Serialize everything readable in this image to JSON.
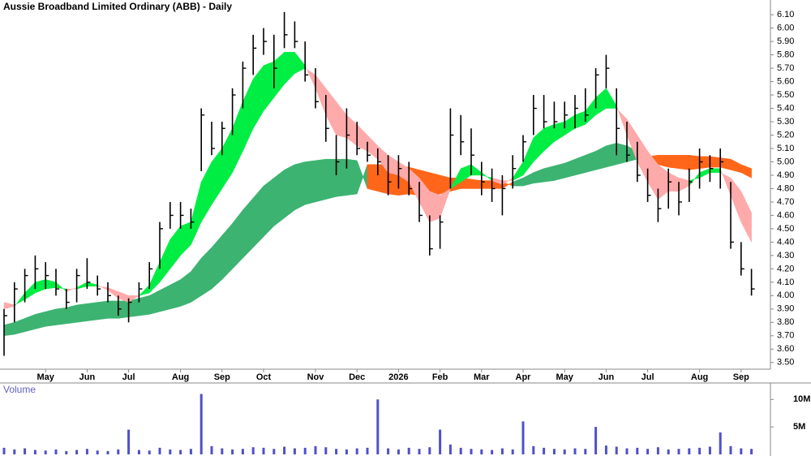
{
  "chart_data": [
    {
      "type": "ohlc",
      "title": "Aussie Broadband Limited Ordinary (ABB) - Daily",
      "categories": [
        null,
        null,
        null,
        null,
        "May",
        null,
        null,
        null,
        "Jun",
        null,
        null,
        null,
        "Jul",
        null,
        null,
        null,
        null,
        "Aug",
        null,
        null,
        null,
        "Sep",
        null,
        null,
        null,
        "Oct",
        null,
        null,
        null,
        null,
        "Nov",
        null,
        null,
        null,
        "Dec",
        null,
        null,
        null,
        "2026",
        null,
        null,
        null,
        "Feb",
        null,
        null,
        null,
        "Mar",
        null,
        null,
        null,
        "Apr",
        null,
        null,
        null,
        "May",
        null,
        null,
        null,
        "Jun",
        null,
        null,
        null,
        "Jul",
        null,
        null,
        null,
        null,
        "Aug",
        null,
        null,
        null,
        "Sep",
        null
      ],
      "high": [
        3.9,
        4.1,
        4.2,
        4.3,
        4.25,
        4.2,
        4.05,
        4.2,
        4.28,
        4.15,
        4.1,
        4.0,
        3.98,
        4.1,
        4.25,
        4.55,
        4.7,
        4.7,
        4.65,
        5.4,
        5.3,
        5.3,
        5.55,
        5.75,
        5.95,
        6.0,
        5.95,
        6.12,
        6.05,
        5.9,
        5.7,
        5.5,
        5.2,
        5.4,
        5.3,
        5.15,
        5.1,
        5.05,
        5.05,
        5.0,
        4.85,
        4.6,
        4.6,
        5.4,
        5.35,
        5.25,
        5.0,
        4.95,
        4.9,
        5.05,
        5.2,
        5.5,
        5.5,
        5.45,
        5.45,
        5.5,
        5.55,
        5.7,
        5.8,
        5.55,
        5.3,
        5.15,
        4.95,
        4.8,
        4.95,
        4.85,
        4.95,
        5.1,
        5.05,
        5.1,
        4.85,
        4.4,
        4.2
      ],
      "low": [
        3.55,
        3.8,
        3.95,
        4.05,
        4.05,
        4.0,
        3.9,
        3.95,
        4.05,
        4.0,
        3.95,
        3.85,
        3.8,
        3.95,
        4.05,
        4.2,
        4.5,
        4.5,
        4.5,
        4.93,
        5.05,
        5.05,
        5.2,
        5.4,
        5.65,
        5.8,
        5.55,
        5.85,
        5.85,
        5.6,
        5.4,
        5.15,
        4.9,
        4.95,
        5.05,
        5.0,
        4.9,
        4.75,
        4.8,
        4.75,
        4.55,
        4.3,
        4.35,
        4.8,
        5.05,
        4.9,
        4.75,
        4.7,
        4.6,
        4.8,
        5.0,
        5.2,
        5.25,
        5.25,
        5.25,
        5.25,
        5.3,
        5.4,
        5.55,
        5.05,
        5.0,
        4.85,
        4.7,
        4.55,
        4.65,
        4.6,
        4.7,
        4.8,
        4.85,
        4.8,
        4.35,
        4.15,
        4.0
      ],
      "close": [
        3.85,
        4.05,
        4.15,
        4.2,
        4.15,
        4.05,
        3.95,
        4.15,
        4.1,
        4.05,
        4.0,
        3.9,
        3.95,
        4.05,
        4.2,
        4.5,
        4.6,
        4.6,
        4.55,
        5.35,
        5.1,
        5.25,
        5.5,
        5.7,
        5.85,
        5.9,
        5.7,
        5.95,
        5.9,
        5.65,
        5.45,
        5.25,
        5.0,
        5.2,
        5.1,
        5.05,
        5.0,
        4.85,
        4.95,
        4.8,
        4.6,
        4.35,
        4.55,
        5.2,
        5.15,
        5.05,
        4.85,
        4.8,
        4.8,
        4.95,
        5.15,
        5.4,
        5.3,
        5.3,
        5.35,
        5.4,
        5.35,
        5.65,
        5.7,
        5.25,
        5.05,
        4.9,
        4.75,
        4.65,
        4.85,
        4.7,
        4.85,
        5.0,
        4.95,
        5.0,
        4.4,
        4.2,
        4.05
      ],
      "color": "#000000",
      "bands": [
        {
          "fast": [
            3.78,
            3.8,
            3.83,
            3.86,
            3.88,
            3.9,
            3.91,
            3.93,
            3.94,
            3.95,
            3.96,
            3.96,
            3.96,
            3.98,
            4.0,
            4.04,
            4.08,
            4.12,
            4.18,
            4.28,
            4.36,
            4.45,
            4.54,
            4.64,
            4.73,
            4.82,
            4.88,
            4.94,
            4.98,
            5.0,
            5.01,
            5.02,
            5.02,
            5.02,
            5.01,
            4.8,
            4.78,
            4.76,
            4.75,
            4.76,
            4.75,
            4.74,
            4.76,
            4.78,
            4.8,
            4.8,
            4.8,
            4.8,
            4.8,
            4.85,
            4.88,
            4.92,
            4.95,
            4.97,
            4.99,
            5.02,
            5.05,
            5.08,
            5.12,
            5.14,
            5.12,
            5.08,
            5.04,
            4.98,
            4.96,
            4.95,
            4.94,
            4.95,
            4.96,
            4.96,
            4.94,
            4.92,
            4.88
          ],
          "slow": [
            3.7,
            3.71,
            3.73,
            3.75,
            3.77,
            3.78,
            3.79,
            3.8,
            3.81,
            3.82,
            3.83,
            3.83,
            3.84,
            3.85,
            3.86,
            3.88,
            3.9,
            3.92,
            3.95,
            4.0,
            4.05,
            4.12,
            4.2,
            4.28,
            4.36,
            4.44,
            4.52,
            4.58,
            4.64,
            4.68,
            4.7,
            4.72,
            4.74,
            4.75,
            4.76,
            4.98,
            4.98,
            4.98,
            4.97,
            4.96,
            4.94,
            4.92,
            4.9,
            4.88,
            4.88,
            4.87,
            4.86,
            4.86,
            4.85,
            4.82,
            4.82,
            4.84,
            4.85,
            4.86,
            4.88,
            4.9,
            4.92,
            4.94,
            4.96,
            4.98,
            5.0,
            5.02,
            5.04,
            5.05,
            5.05,
            5.05,
            5.05,
            5.04,
            5.04,
            5.03,
            5.02,
            4.98,
            4.95
          ],
          "up_color": "#3cb371",
          "down_color": "#ff6619"
        },
        {
          "fast": [
            3.9,
            3.92,
            4.02,
            4.1,
            4.12,
            4.1,
            4.03,
            4.06,
            4.1,
            4.08,
            4.04,
            3.98,
            3.95,
            4.0,
            4.08,
            4.25,
            4.42,
            4.52,
            4.55,
            4.85,
            5.0,
            5.1,
            5.25,
            5.45,
            5.62,
            5.72,
            5.75,
            5.82,
            5.82,
            5.72,
            5.55,
            5.35,
            5.2,
            5.18,
            5.12,
            5.08,
            5.02,
            4.92,
            4.9,
            4.85,
            4.7,
            4.55,
            4.58,
            4.8,
            4.95,
            4.98,
            4.92,
            4.86,
            4.83,
            4.88,
            5.0,
            5.18,
            5.25,
            5.28,
            5.3,
            5.35,
            5.38,
            5.48,
            5.55,
            5.42,
            5.2,
            5.0,
            4.85,
            4.72,
            4.78,
            4.78,
            4.82,
            4.92,
            4.95,
            4.95,
            4.75,
            4.55,
            4.4
          ],
          "slow": [
            3.95,
            3.93,
            3.97,
            4.02,
            4.05,
            4.06,
            4.05,
            4.05,
            4.07,
            4.07,
            4.06,
            4.03,
            4.0,
            4.0,
            4.02,
            4.1,
            4.2,
            4.3,
            4.38,
            4.55,
            4.68,
            4.8,
            4.92,
            5.08,
            5.25,
            5.38,
            5.48,
            5.58,
            5.66,
            5.7,
            5.65,
            5.55,
            5.45,
            5.35,
            5.28,
            5.2,
            5.12,
            5.05,
            5.0,
            4.95,
            4.88,
            4.78,
            4.75,
            4.8,
            4.85,
            4.9,
            4.9,
            4.88,
            4.86,
            4.86,
            4.9,
            5.0,
            5.08,
            5.15,
            5.2,
            5.25,
            5.28,
            5.35,
            5.4,
            5.4,
            5.32,
            5.2,
            5.08,
            4.98,
            4.92,
            4.88,
            4.86,
            4.88,
            4.92,
            4.92,
            4.88,
            4.78,
            4.62
          ],
          "up_color": "#00ee44",
          "down_color": "#ffaaaa"
        }
      ],
      "ylim": [
        3.45,
        6.21
      ],
      "yticks": [
        {
          "value": 3.5,
          "label": "3.50"
        },
        {
          "value": 3.6,
          "label": "3.60"
        },
        {
          "value": 3.7,
          "label": "3.70"
        },
        {
          "value": 3.8,
          "label": "3.80"
        },
        {
          "value": 3.9,
          "label": "3.90"
        },
        {
          "value": 4.0,
          "label": "4.00"
        },
        {
          "value": 4.1,
          "label": "4.10"
        },
        {
          "value": 4.2,
          "label": "4.20"
        },
        {
          "value": 4.3,
          "label": "4.30"
        },
        {
          "value": 4.4,
          "label": "4.40"
        },
        {
          "value": 4.5,
          "label": "4.50"
        },
        {
          "value": 4.6,
          "label": "4.60"
        },
        {
          "value": 4.7,
          "label": "4.70"
        },
        {
          "value": 4.8,
          "label": "4.80"
        },
        {
          "value": 4.9,
          "label": "4.90"
        },
        {
          "value": 5.0,
          "label": "5.00"
        },
        {
          "value": 5.1,
          "label": "5.10"
        },
        {
          "value": 5.2,
          "label": "5.20"
        },
        {
          "value": 5.3,
          "label": "5.30"
        },
        {
          "value": 5.4,
          "label": "5.40"
        },
        {
          "value": 5.5,
          "label": "5.50"
        },
        {
          "value": 5.6,
          "label": "5.60"
        },
        {
          "value": 5.7,
          "label": "5.70"
        },
        {
          "value": 5.8,
          "label": "5.80"
        },
        {
          "value": 5.9,
          "label": "5.90"
        },
        {
          "value": 6.0,
          "label": "6.00"
        },
        {
          "value": 6.1,
          "label": "6.10"
        }
      ]
    },
    {
      "type": "bar",
      "title": "Volume",
      "color": "#5050c8",
      "values": [
        1200000,
        900000,
        1100000,
        800000,
        700000,
        900000,
        600000,
        800000,
        1000000,
        700000,
        600000,
        900000,
        4500000,
        800000,
        700000,
        1200000,
        900000,
        800000,
        1000000,
        11000000,
        1500000,
        1100000,
        900000,
        1000000,
        1300000,
        1200000,
        1000000,
        1400000,
        1100000,
        1200000,
        1500000,
        1300000,
        1000000,
        900000,
        1100000,
        1200000,
        10000000,
        1100000,
        900000,
        1200000,
        1000000,
        1300000,
        4500000,
        1800000,
        1200000,
        1000000,
        900000,
        800000,
        1100000,
        900000,
        6000000,
        1500000,
        1200000,
        1000000,
        900000,
        1100000,
        1000000,
        5000000,
        1600000,
        1400000,
        1100000,
        1200000,
        1000000,
        1300000,
        900000,
        1000000,
        1100000,
        1200000,
        1400000,
        4000000,
        1500000,
        1100000,
        1000000
      ],
      "ylim": [
        0,
        13000000
      ],
      "yticks": [
        {
          "value": 5000000,
          "label": "5M"
        },
        {
          "value": 10000000,
          "label": "10M"
        }
      ]
    }
  ]
}
